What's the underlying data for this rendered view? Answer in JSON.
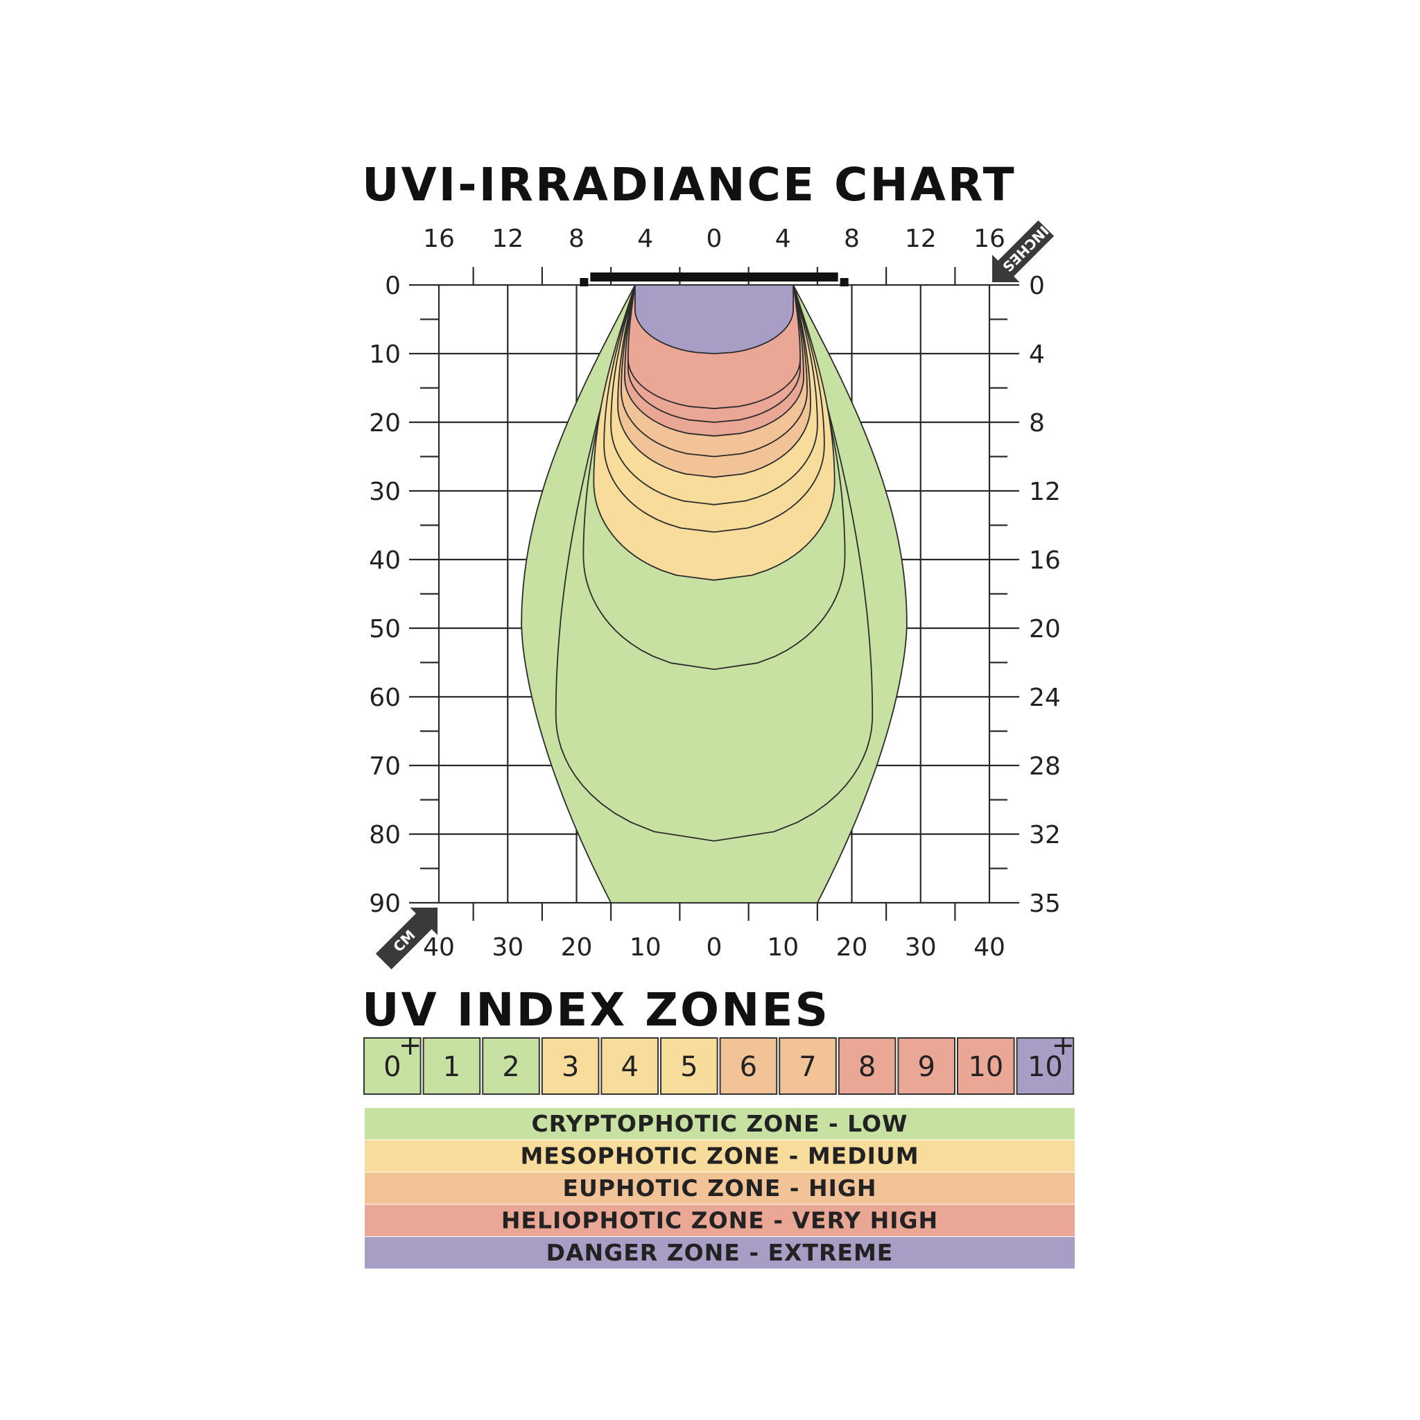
{
  "title": "UVI-IRRADIANCE CHART",
  "zones_title": "UV INDEX ZONES",
  "colors": {
    "low": "#c6e1a1",
    "medium": "#f8dc9c",
    "high": "#f2c397",
    "very_high": "#eaa795",
    "extreme": "#a79dc5",
    "grid": "#2a2a2a"
  },
  "chart_data": {
    "type": "heatmap",
    "title": "UVI-IRRADIANCE CHART",
    "x_axis_bottom": {
      "unit": "CM",
      "ticks": [
        "40",
        "30",
        "20",
        "10",
        "0",
        "10",
        "20",
        "30",
        "40"
      ],
      "range": [
        -40,
        40
      ]
    },
    "x_axis_top": {
      "unit": "INCHES",
      "ticks": [
        "16",
        "12",
        "8",
        "4",
        "0",
        "4",
        "8",
        "12",
        "16"
      ],
      "range": [
        -16,
        16
      ]
    },
    "y_axis_left": {
      "unit": "CM",
      "ticks": [
        "0",
        "10",
        "20",
        "30",
        "40",
        "50",
        "60",
        "70",
        "80",
        "90"
      ],
      "range": [
        0,
        90
      ]
    },
    "y_axis_right": {
      "unit": "INCHES",
      "ticks": [
        "0",
        "4",
        "8",
        "12",
        "16",
        "20",
        "24",
        "28",
        "32",
        "35"
      ],
      "range": [
        0,
        35
      ]
    },
    "grid": true,
    "lamp_width_cm": [
      -18,
      18
    ],
    "isolines": [
      {
        "uvi": "0+",
        "zone": "low",
        "max_depth_cm": 90,
        "max_half_width_cm": 28
      },
      {
        "uvi": "1",
        "zone": "low",
        "max_depth_cm": 81,
        "max_half_width_cm": 23
      },
      {
        "uvi": "2",
        "zone": "low",
        "max_depth_cm": 56,
        "max_half_width_cm": 19
      },
      {
        "uvi": "3",
        "zone": "medium",
        "max_depth_cm": 43,
        "max_half_width_cm": 17.5
      },
      {
        "uvi": "4",
        "zone": "medium",
        "max_depth_cm": 36,
        "max_half_width_cm": 16
      },
      {
        "uvi": "5",
        "zone": "medium",
        "max_depth_cm": 32,
        "max_half_width_cm": 15
      },
      {
        "uvi": "6",
        "zone": "high",
        "max_depth_cm": 28,
        "max_half_width_cm": 14
      },
      {
        "uvi": "7",
        "zone": "high",
        "max_depth_cm": 25,
        "max_half_width_cm": 13.5
      },
      {
        "uvi": "8",
        "zone": "very_high",
        "max_depth_cm": 22,
        "max_half_width_cm": 13
      },
      {
        "uvi": "9",
        "zone": "very_high",
        "max_depth_cm": 20,
        "max_half_width_cm": 12.5
      },
      {
        "uvi": "10",
        "zone": "very_high",
        "max_depth_cm": 18,
        "max_half_width_cm": 12.5
      },
      {
        "uvi": "10+",
        "zone": "extreme",
        "max_depth_cm": 10,
        "max_half_width_cm": 11.5
      }
    ]
  },
  "axis_units": {
    "top_right": "INCHES",
    "bottom_left": "CM"
  },
  "index_boxes": [
    {
      "label": "0",
      "sup": "+",
      "zone": "low"
    },
    {
      "label": "1",
      "sup": "",
      "zone": "low"
    },
    {
      "label": "2",
      "sup": "",
      "zone": "low"
    },
    {
      "label": "3",
      "sup": "",
      "zone": "medium"
    },
    {
      "label": "4",
      "sup": "",
      "zone": "medium"
    },
    {
      "label": "5",
      "sup": "",
      "zone": "medium"
    },
    {
      "label": "6",
      "sup": "",
      "zone": "high"
    },
    {
      "label": "7",
      "sup": "",
      "zone": "high"
    },
    {
      "label": "8",
      "sup": "",
      "zone": "very_high"
    },
    {
      "label": "9",
      "sup": "",
      "zone": "very_high"
    },
    {
      "label": "10",
      "sup": "",
      "zone": "very_high"
    },
    {
      "label": "10",
      "sup": "+",
      "zone": "extreme"
    }
  ],
  "zone_bands": [
    {
      "label": "CRYPTOPHOTIC ZONE - LOW",
      "zone": "low"
    },
    {
      "label": "MESOPHOTIC ZONE - MEDIUM",
      "zone": "medium"
    },
    {
      "label": "EUPHOTIC ZONE - HIGH",
      "zone": "high"
    },
    {
      "label": "HELIOPHOTIC ZONE - VERY HIGH",
      "zone": "very_high"
    },
    {
      "label": "DANGER ZONE - EXTREME",
      "zone": "extreme"
    }
  ]
}
